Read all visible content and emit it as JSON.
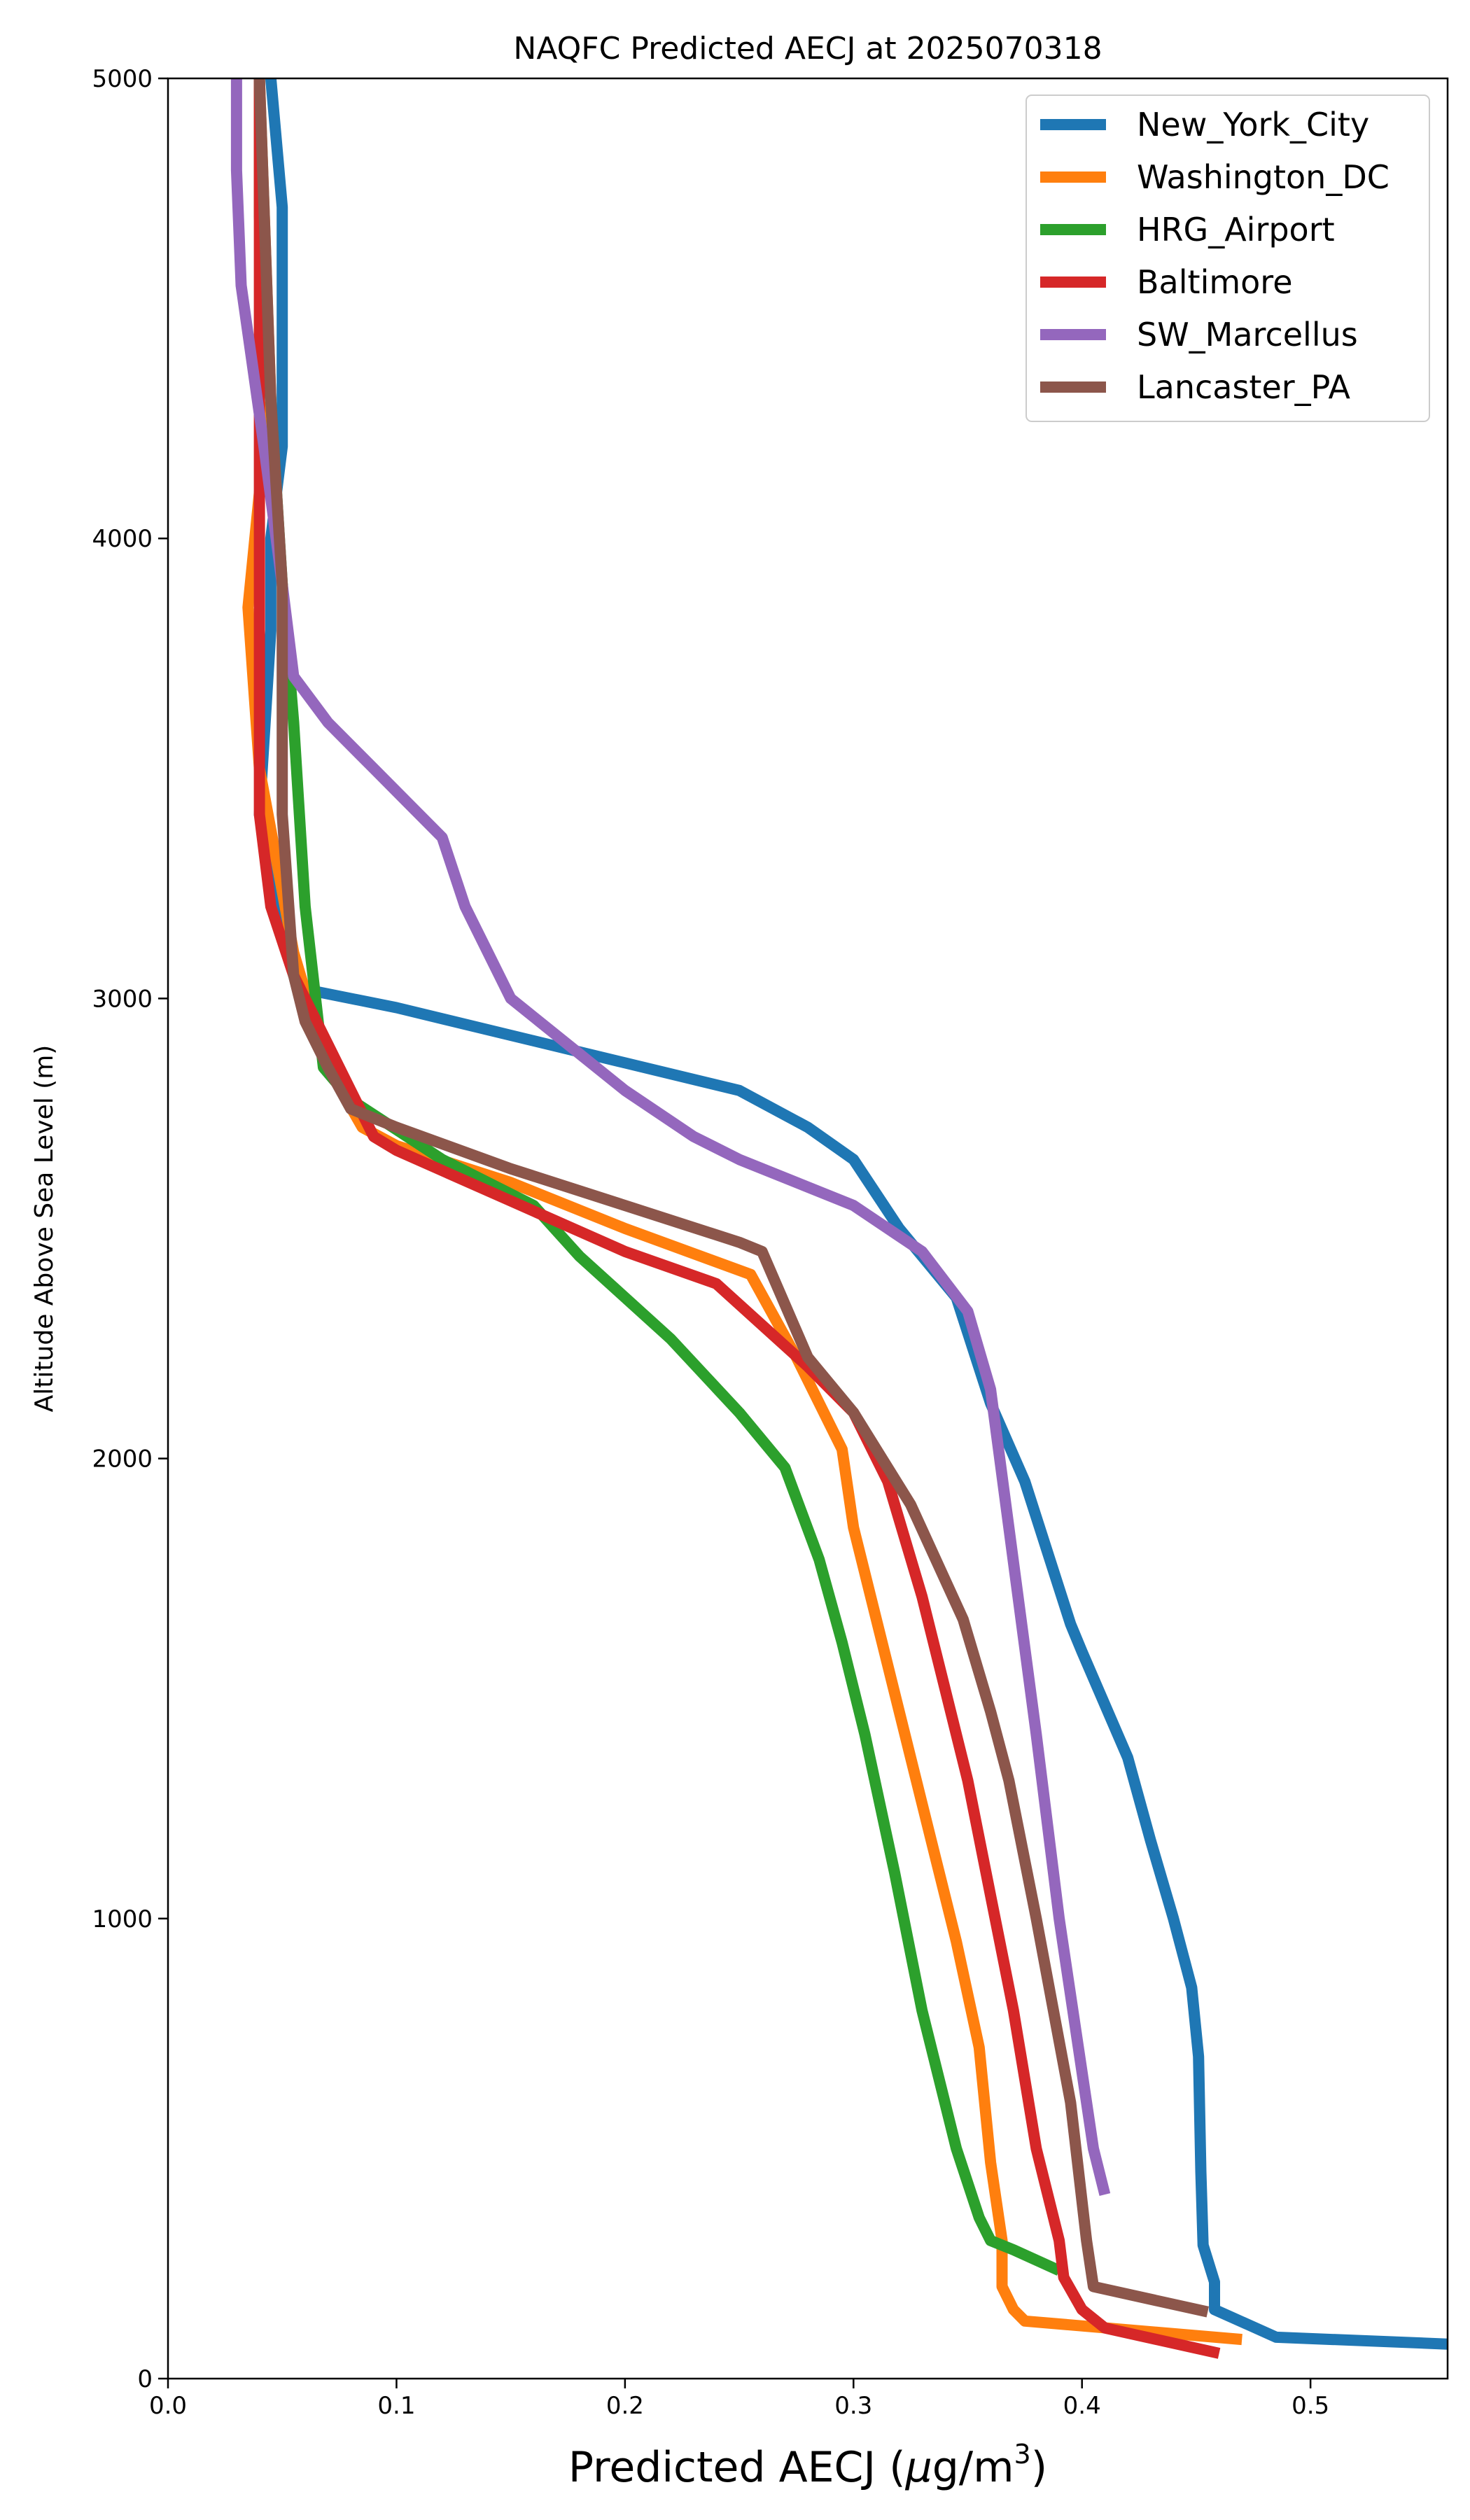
{
  "chart_data": {
    "type": "line",
    "title": "NAQFC Predicted AECJ at 2025070318",
    "xlabel_prefix": "Predicted AECJ (",
    "xlabel_mu": "μ",
    "xlabel_unit": "g/m",
    "xlabel_sup": "3",
    "xlabel_suffix": ")",
    "ylabel": "Altitude Above Sea Level (m)",
    "xlim": [
      0.0,
      0.56
    ],
    "ylim": [
      0,
      5000
    ],
    "xticks": [
      0.0,
      0.1,
      0.2,
      0.3,
      0.4,
      0.5
    ],
    "xtick_labels": [
      "0.0",
      "0.1",
      "0.2",
      "0.3",
      "0.4",
      "0.5"
    ],
    "yticks": [
      0,
      1000,
      2000,
      3000,
      4000,
      5000
    ],
    "ytick_labels": [
      "0",
      "1000",
      "2000",
      "3000",
      "4000",
      "5000"
    ],
    "grid": false,
    "legend_position": "upper right",
    "series": [
      {
        "name": "New_York_City",
        "color": "#1f77b4",
        "points": [
          [
            0.56,
            75
          ],
          [
            0.485,
            90
          ],
          [
            0.458,
            150
          ],
          [
            0.458,
            210
          ],
          [
            0.453,
            290
          ],
          [
            0.452,
            450
          ],
          [
            0.451,
            700
          ],
          [
            0.448,
            850
          ],
          [
            0.44,
            1000
          ],
          [
            0.43,
            1170
          ],
          [
            0.42,
            1350
          ],
          [
            0.4,
            1580
          ],
          [
            0.395,
            1640
          ],
          [
            0.375,
            1950
          ],
          [
            0.36,
            2120
          ],
          [
            0.345,
            2350
          ],
          [
            0.32,
            2500
          ],
          [
            0.3,
            2650
          ],
          [
            0.28,
            2720
          ],
          [
            0.25,
            2800
          ],
          [
            0.2,
            2860
          ],
          [
            0.15,
            2920
          ],
          [
            0.1,
            2980
          ],
          [
            0.06,
            3020
          ],
          [
            0.05,
            3150
          ],
          [
            0.04,
            3400
          ],
          [
            0.045,
            3800
          ],
          [
            0.045,
            4000
          ],
          [
            0.05,
            4200
          ],
          [
            0.05,
            4720
          ],
          [
            0.045,
            5000
          ]
        ]
      },
      {
        "name": "Washington_DC",
        "color": "#ff7f0e",
        "points": [
          [
            0.47,
            85
          ],
          [
            0.375,
            125
          ],
          [
            0.37,
            150
          ],
          [
            0.365,
            200
          ],
          [
            0.365,
            300
          ],
          [
            0.36,
            470
          ],
          [
            0.355,
            720
          ],
          [
            0.345,
            950
          ],
          [
            0.33,
            1250
          ],
          [
            0.315,
            1550
          ],
          [
            0.3,
            1850
          ],
          [
            0.295,
            2020
          ],
          [
            0.275,
            2220
          ],
          [
            0.255,
            2400
          ],
          [
            0.2,
            2500
          ],
          [
            0.15,
            2600
          ],
          [
            0.1,
            2680
          ],
          [
            0.085,
            2720
          ],
          [
            0.07,
            2850
          ],
          [
            0.055,
            3100
          ],
          [
            0.04,
            3500
          ],
          [
            0.035,
            3850
          ],
          [
            0.04,
            4100
          ],
          [
            0.045,
            4300
          ],
          [
            0.04,
            5000
          ]
        ]
      },
      {
        "name": "HRG_Airport",
        "color": "#2ca02c",
        "points": [
          [
            0.39,
            235
          ],
          [
            0.37,
            280
          ],
          [
            0.36,
            300
          ],
          [
            0.355,
            350
          ],
          [
            0.345,
            500
          ],
          [
            0.33,
            800
          ],
          [
            0.318,
            1100
          ],
          [
            0.305,
            1400
          ],
          [
            0.295,
            1600
          ],
          [
            0.285,
            1780
          ],
          [
            0.27,
            1980
          ],
          [
            0.25,
            2100
          ],
          [
            0.22,
            2260
          ],
          [
            0.18,
            2440
          ],
          [
            0.16,
            2550
          ],
          [
            0.12,
            2650
          ],
          [
            0.08,
            2780
          ],
          [
            0.068,
            2850
          ],
          [
            0.06,
            3200
          ],
          [
            0.055,
            3600
          ],
          [
            0.05,
            3900
          ],
          [
            0.04,
            4700
          ],
          [
            0.04,
            5000
          ]
        ]
      },
      {
        "name": "Baltimore",
        "color": "#d62728",
        "points": [
          [
            0.46,
            55
          ],
          [
            0.41,
            110
          ],
          [
            0.4,
            150
          ],
          [
            0.392,
            220
          ],
          [
            0.39,
            300
          ],
          [
            0.38,
            500
          ],
          [
            0.37,
            800
          ],
          [
            0.36,
            1050
          ],
          [
            0.35,
            1300
          ],
          [
            0.34,
            1500
          ],
          [
            0.33,
            1700
          ],
          [
            0.315,
            1950
          ],
          [
            0.3,
            2100
          ],
          [
            0.28,
            2200
          ],
          [
            0.24,
            2380
          ],
          [
            0.2,
            2450
          ],
          [
            0.15,
            2560
          ],
          [
            0.1,
            2670
          ],
          [
            0.09,
            2700
          ],
          [
            0.08,
            2800
          ],
          [
            0.07,
            2900
          ],
          [
            0.055,
            3050
          ],
          [
            0.045,
            3200
          ],
          [
            0.04,
            3400
          ],
          [
            0.04,
            3800
          ],
          [
            0.04,
            4400
          ],
          [
            0.04,
            5000
          ]
        ]
      },
      {
        "name": "SW_Marcellus",
        "color": "#9467bd",
        "points": [
          [
            0.41,
            400
          ],
          [
            0.405,
            500
          ],
          [
            0.39,
            1000
          ],
          [
            0.38,
            1400
          ],
          [
            0.372,
            1700
          ],
          [
            0.36,
            2150
          ],
          [
            0.35,
            2320
          ],
          [
            0.33,
            2450
          ],
          [
            0.3,
            2550
          ],
          [
            0.25,
            2650
          ],
          [
            0.23,
            2700
          ],
          [
            0.2,
            2800
          ],
          [
            0.15,
            3000
          ],
          [
            0.13,
            3200
          ],
          [
            0.12,
            3350
          ],
          [
            0.09,
            3500
          ],
          [
            0.07,
            3600
          ],
          [
            0.055,
            3700
          ],
          [
            0.05,
            3900
          ],
          [
            0.042,
            4200
          ],
          [
            0.032,
            4550
          ],
          [
            0.03,
            4800
          ],
          [
            0.03,
            5000
          ]
        ]
      },
      {
        "name": "Lancaster_PA",
        "color": "#8c564b",
        "points": [
          [
            0.455,
            145
          ],
          [
            0.405,
            200
          ],
          [
            0.402,
            300
          ],
          [
            0.395,
            600
          ],
          [
            0.38,
            1000
          ],
          [
            0.368,
            1300
          ],
          [
            0.36,
            1450
          ],
          [
            0.348,
            1650
          ],
          [
            0.325,
            1900
          ],
          [
            0.3,
            2100
          ],
          [
            0.28,
            2220
          ],
          [
            0.26,
            2450
          ],
          [
            0.25,
            2470
          ],
          [
            0.2,
            2550
          ],
          [
            0.15,
            2630
          ],
          [
            0.1,
            2720
          ],
          [
            0.08,
            2760
          ],
          [
            0.07,
            2850
          ],
          [
            0.06,
            2950
          ],
          [
            0.055,
            3050
          ],
          [
            0.05,
            3400
          ],
          [
            0.05,
            3900
          ],
          [
            0.045,
            4300
          ],
          [
            0.04,
            5000
          ]
        ]
      }
    ]
  }
}
